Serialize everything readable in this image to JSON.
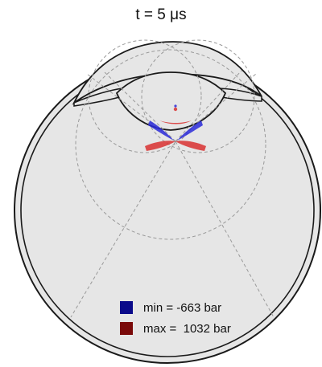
{
  "title": "t = 5 μs",
  "legend": {
    "min": {
      "label": "min = -663 bar",
      "color": "#0a0a8a"
    },
    "max": {
      "label": "max =  1032 bar",
      "color": "#7a0a0a"
    }
  },
  "colors": {
    "eye_fill": "#e6e6e6",
    "outline": "#1a1a1a",
    "guide_lines": "#9a9a9a",
    "negative_pressure": "#2a2ad8",
    "positive_pressure": "#d83030"
  }
}
